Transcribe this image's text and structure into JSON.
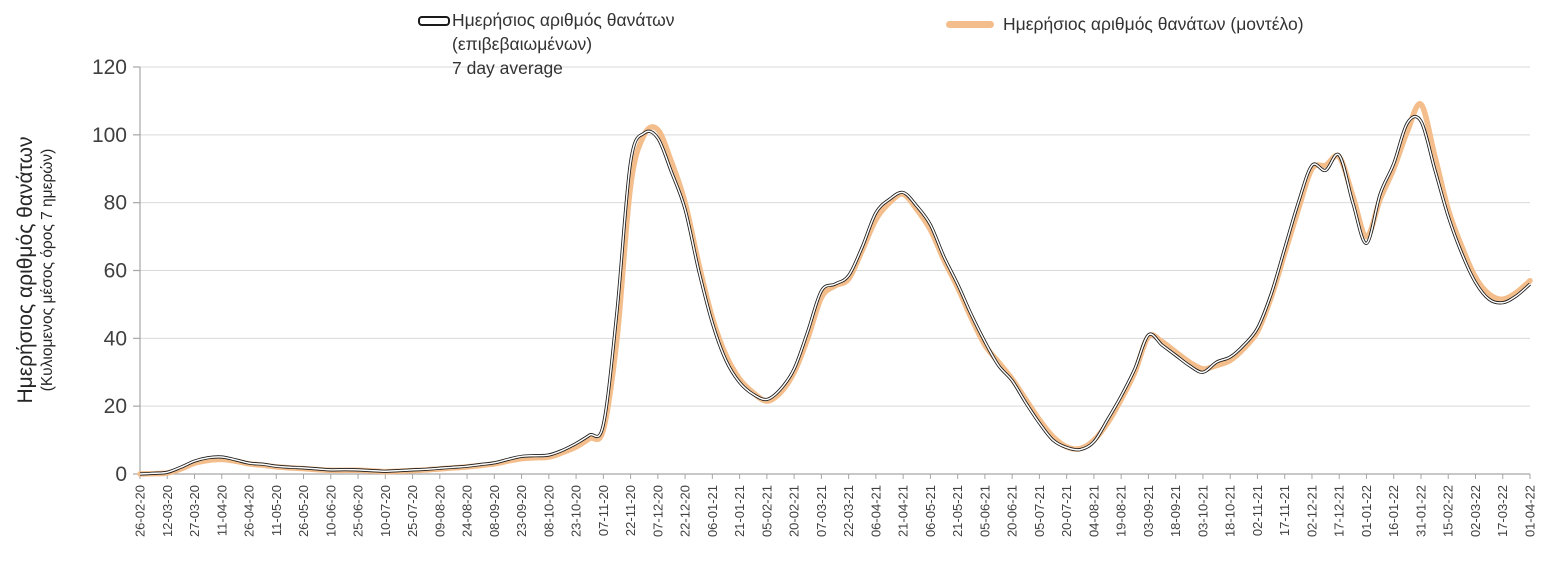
{
  "legend": {
    "confirmed": {
      "line1": "Ημερήσιος αριθμός θανάτων",
      "line2": "(επιβεβαιωμένων)",
      "line3": "7 day average"
    },
    "model": {
      "label": "Ημερήσιος αριθμός θανάτων (μοντέλο)"
    }
  },
  "y_axis_title": {
    "line1": "Ημερήσιος αριθμός θανάτων",
    "line2": "(Κυλιομενος μέσος όρος 7 ημερών)"
  },
  "colors": {
    "confirmed_line": "#1a1a1a",
    "model_line": "#F3BE8C",
    "gridline": "#D9D9D9",
    "axis": "#A6A6A6",
    "text": "#404040"
  },
  "chart_data": {
    "type": "line",
    "title": "",
    "ylabel": "Ημερήσιος αριθμός θανάτων (Κυλιομενος μέσος όρος 7 ημερών)",
    "ylim": [
      0,
      120
    ],
    "y_ticks": [
      0,
      20,
      40,
      60,
      80,
      100,
      120
    ],
    "grid": "horizontal",
    "legend_position": "top",
    "x_label_rotation": 90,
    "categories": [
      "26-02-20",
      "12-03-20",
      "27-03-20",
      "11-04-20",
      "26-04-20",
      "11-05-20",
      "26-05-20",
      "10-06-20",
      "25-06-20",
      "10-07-20",
      "25-07-20",
      "09-08-20",
      "24-08-20",
      "08-09-20",
      "23-09-20",
      "08-10-20",
      "23-10-20",
      "07-11-20",
      "22-11-20",
      "07-12-20",
      "22-12-20",
      "06-01-21",
      "21-01-21",
      "05-02-21",
      "20-02-21",
      "07-03-21",
      "22-03-21",
      "06-04-21",
      "21-04-21",
      "06-05-21",
      "21-05-21",
      "05-06-21",
      "20-06-21",
      "05-07-21",
      "20-07-21",
      "04-08-21",
      "19-08-21",
      "03-09-21",
      "18-09-21",
      "03-10-21",
      "18-10-21",
      "02-11-21",
      "17-11-21",
      "02-12-21",
      "17-12-21",
      "01-01-22",
      "16-01-22",
      "31-01-22",
      "15-02-22",
      "02-03-22",
      "17-03-22",
      "01-04-22"
    ],
    "samples_per_interval": 2,
    "series": [
      {
        "name": "Ημερήσιος αριθμός θανάτων (επιβεβαιωμένων) 7 day average",
        "color": "#1a1a1a",
        "style": "thin-double",
        "values": [
          0,
          0.2,
          0.5,
          2,
          3.8,
          4.8,
          5,
          4.2,
          3.2,
          2.9,
          2.3,
          2,
          1.8,
          1.5,
          1.2,
          1.3,
          1.2,
          1,
          0.8,
          1,
          1.2,
          1.4,
          1.7,
          2,
          2.3,
          2.8,
          3.3,
          4.3,
          5.2,
          5.4,
          5.6,
          7,
          9,
          11.5,
          14.5,
          48,
          92,
          100.5,
          99,
          89,
          78,
          60,
          44.5,
          33.5,
          27,
          23.5,
          22,
          25,
          31,
          42,
          54,
          56,
          58.5,
          67,
          77,
          81,
          83,
          79,
          73.5,
          64,
          56,
          47,
          39,
          32,
          27.5,
          21,
          15,
          10,
          7.8,
          7.2,
          9.5,
          16,
          23,
          31,
          41,
          38,
          35,
          32,
          30,
          33,
          34.5,
          38,
          43,
          53,
          66.5,
          80,
          91,
          89.5,
          94,
          80,
          68,
          82.5,
          91.5,
          103.5,
          104,
          90,
          76,
          65,
          56.5,
          51.5,
          50.5,
          52.5,
          56
        ]
      },
      {
        "name": "Ημερήσιος αριθμός θανάτων (μοντέλο)",
        "color": "#F3BE8C",
        "style": "thick-smooth",
        "values": [
          0,
          0.1,
          0.3,
          1.5,
          3.2,
          4,
          4.3,
          3.8,
          3,
          2.6,
          2.1,
          1.8,
          1.6,
          1.3,
          1.1,
          1.1,
          1.1,
          0.9,
          0.7,
          0.8,
          1,
          1.2,
          1.5,
          1.8,
          2.1,
          2.5,
          3,
          3.8,
          4.5,
          4.8,
          5,
          6.3,
          8,
          10.5,
          13,
          40,
          85,
          100,
          101.5,
          92,
          80,
          62,
          46,
          35,
          28,
          24,
          21.5,
          24,
          30,
          40,
          52,
          55.5,
          57.5,
          66,
          75,
          80,
          82.5,
          78,
          72,
          63,
          55,
          46,
          38,
          33,
          28,
          22,
          16,
          11,
          8,
          7.5,
          10,
          15,
          22,
          30,
          40.5,
          39,
          36,
          33,
          31,
          32,
          33.5,
          37,
          42,
          52,
          65,
          78,
          90,
          91,
          93.5,
          82,
          70,
          81,
          90,
          101,
          109,
          94,
          78,
          67,
          58,
          53,
          51.5,
          53.5,
          57
        ]
      }
    ]
  }
}
